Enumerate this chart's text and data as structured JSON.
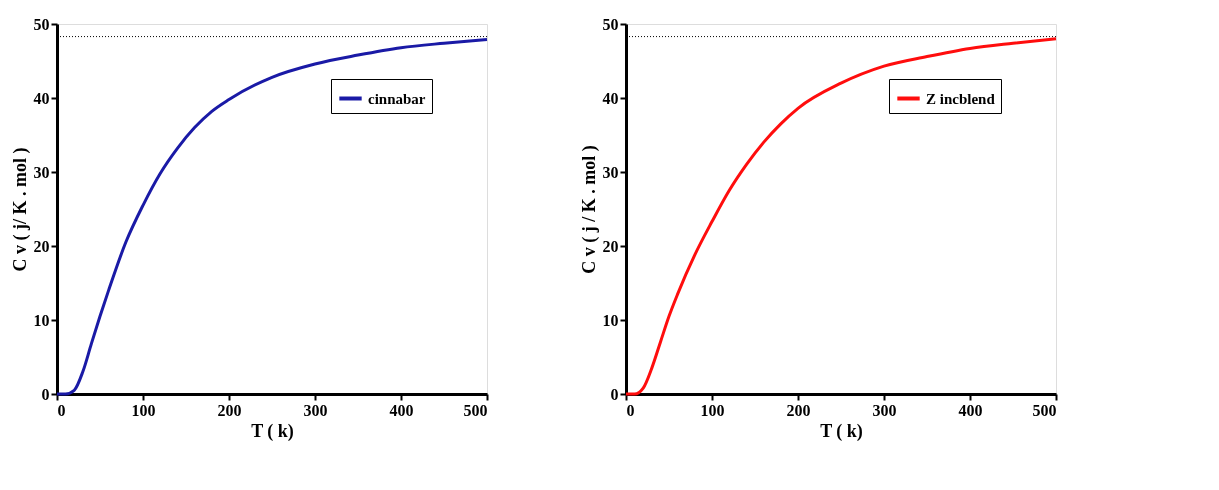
{
  "chart_data": [
    {
      "type": "line",
      "xlabel": "T ( k)",
      "ylabel": "C v ( j/ K . mol )",
      "x": [
        0,
        10,
        20,
        30,
        40,
        50,
        60,
        80,
        100,
        120,
        140,
        160,
        180,
        200,
        250,
        300,
        350,
        400,
        450,
        500
      ],
      "series": [
        {
          "name": "cinnabar",
          "color": "#1a1aa6",
          "values": [
            0,
            0,
            0.5,
            3,
            6.8,
            10.5,
            14,
            20.5,
            25.5,
            29.8,
            33.2,
            36,
            38.2,
            39.8,
            42.8,
            44.6,
            45.8,
            46.8,
            47.4,
            47.9
          ]
        }
      ],
      "xlim": [
        0,
        500
      ],
      "xticks": [
        0,
        100,
        200,
        300,
        400,
        500
      ],
      "ylim": [
        0,
        50
      ],
      "yticks": [
        0,
        10,
        20,
        30,
        40,
        50
      ],
      "ref_lines": [
        {
          "axis": "y",
          "value": 48.3,
          "line_style": "dotted",
          "color": "#000000"
        }
      ],
      "legend": "top right",
      "marker": "none",
      "line_style": "solid",
      "grid": false
    },
    {
      "type": "line",
      "xlabel": "T ( k)",
      "ylabel": "C v ( j / K . mol )",
      "x": [
        0,
        10,
        20,
        30,
        40,
        50,
        60,
        80,
        100,
        120,
        140,
        160,
        180,
        200,
        250,
        300,
        350,
        400,
        450,
        500
      ],
      "series": [
        {
          "name": "Z incblend",
          "color": "#ff0d0d",
          "values": [
            0,
            0,
            0.8,
            3.5,
            7,
            10.5,
            13.5,
            18.8,
            23.3,
            27.5,
            31,
            34,
            36.5,
            38.6,
            42,
            44.3,
            45.6,
            46.7,
            47.4,
            48.0
          ]
        }
      ],
      "xlim": [
        0,
        500
      ],
      "xticks": [
        0,
        100,
        200,
        300,
        400,
        500
      ],
      "ylim": [
        0,
        50
      ],
      "yticks": [
        0,
        10,
        20,
        30,
        40,
        50
      ],
      "ref_lines": [
        {
          "axis": "y",
          "value": 48.3,
          "line_style": "dotted",
          "color": "#000000"
        }
      ],
      "legend": "top right",
      "marker": "none",
      "line_style": "solid",
      "grid": false
    }
  ]
}
